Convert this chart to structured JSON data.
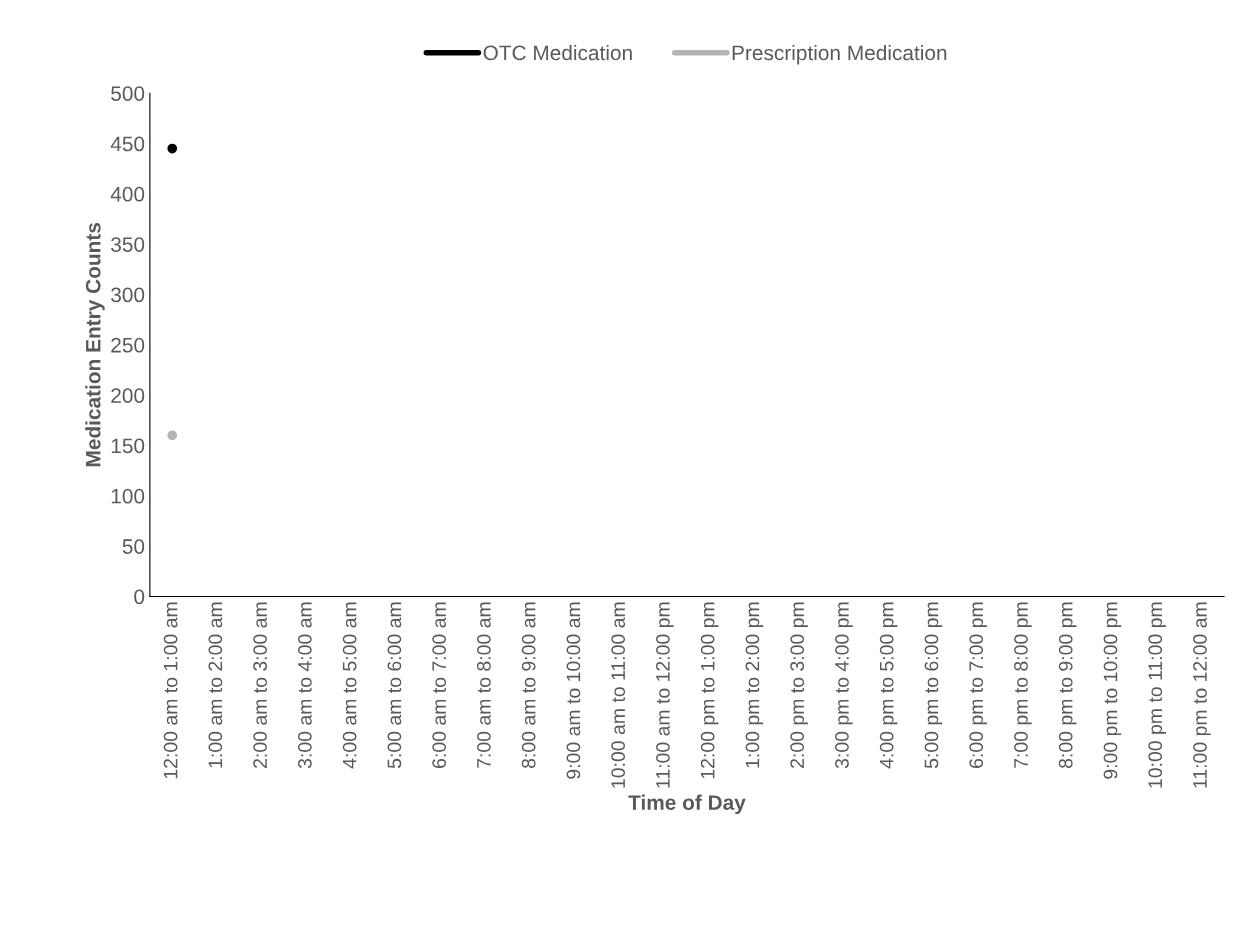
{
  "chart_data": {
    "type": "line",
    "xlabel": "Time of Day",
    "ylabel": "Medication Entry Counts",
    "categories": [
      "12:00 am to 1:00 am",
      "1:00 am to 2:00 am",
      "2:00 am to 3:00 am",
      "3:00 am to 4:00 am",
      "4:00 am to 5:00 am",
      "5:00 am to 6:00 am",
      "6:00 am to 7:00 am",
      "7:00 am to 8:00 am",
      "8:00 am to 9:00 am",
      "9:00 am to 10:00 am",
      "10:00 am to 11:00 am",
      "11:00 am to 12:00 pm",
      "12:00 pm to 1:00 pm",
      "1:00 pm to 2:00 pm",
      "2:00 pm to 3:00 pm",
      "3:00 pm to 4:00 pm",
      "4:00 pm to 5:00 pm",
      "5:00 pm to 6:00 pm",
      "6:00 pm to 7:00 pm",
      "7:00 pm to 8:00 pm",
      "8:00 pm to 9:00 pm",
      "9:00 pm to 10:00 pm",
      "10:00 pm to 11:00 pm",
      "11:00 pm to 12:00 am"
    ],
    "series": [
      {
        "name": "OTC Medication",
        "color": "#000000",
        "values": [
          445,
          null,
          null,
          null,
          null,
          null,
          null,
          null,
          null,
          null,
          null,
          null,
          null,
          null,
          null,
          null,
          null,
          null,
          null,
          null,
          null,
          null,
          null,
          null
        ]
      },
      {
        "name": "Prescription Medication",
        "color": "#b4b4b4",
        "values": [
          160,
          null,
          null,
          null,
          null,
          null,
          null,
          null,
          null,
          null,
          null,
          null,
          null,
          null,
          null,
          null,
          null,
          null,
          null,
          null,
          null,
          null,
          null,
          null
        ]
      }
    ],
    "ylim": [
      0,
      500
    ],
    "yticks": [
      0,
      50,
      100,
      150,
      200,
      250,
      300,
      350,
      400,
      450,
      500
    ],
    "grid": false,
    "legend": "top",
    "marker": "circle",
    "line_style": "solid"
  }
}
